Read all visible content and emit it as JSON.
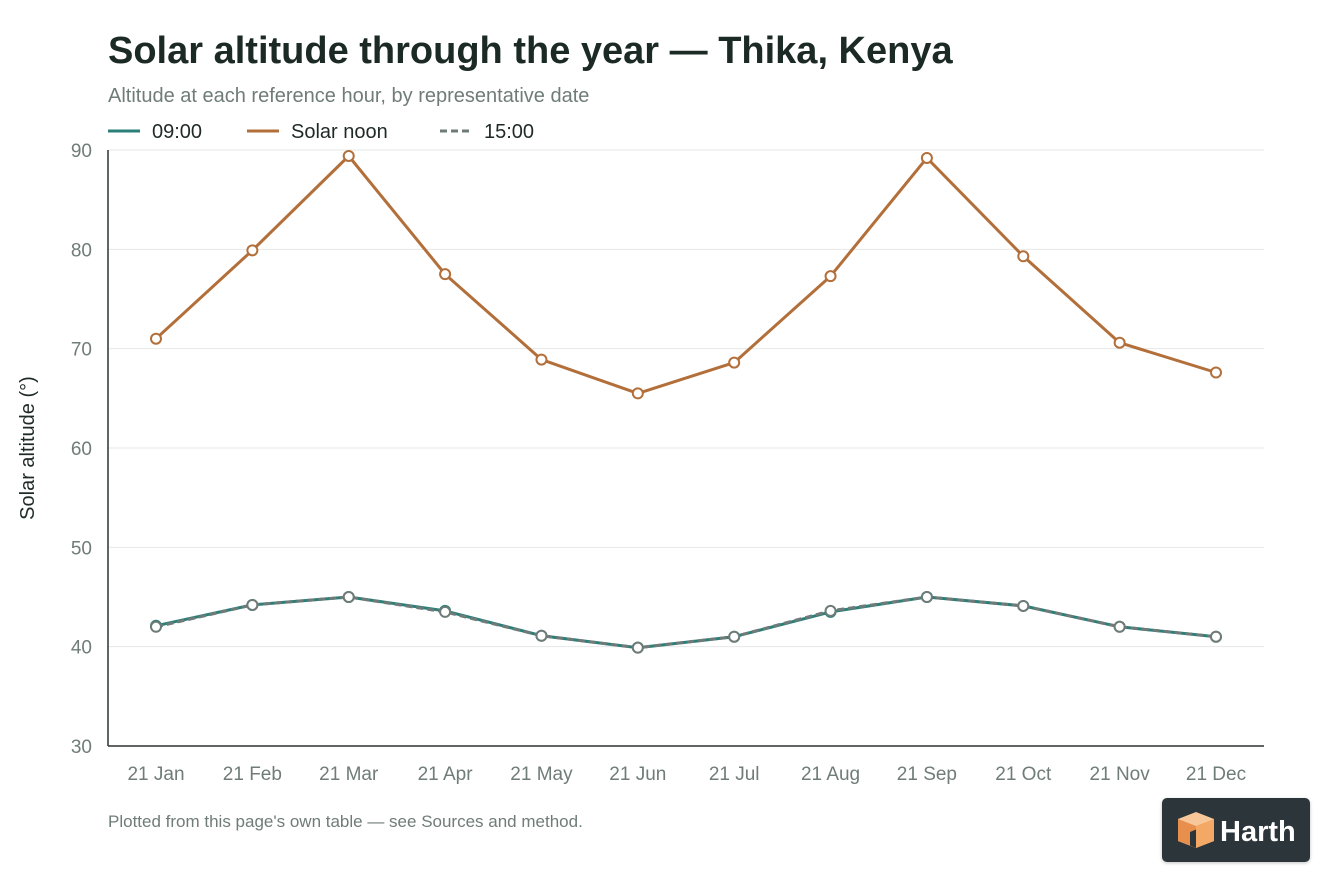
{
  "chart_data": {
    "type": "line",
    "title": "Solar altitude through the year — Thika, Kenya",
    "subtitle": "Altitude at each reference hour, by representative date",
    "ylabel": "Solar altitude (°)",
    "xlabel": "",
    "ylim": [
      30,
      90
    ],
    "yticks": [
      30,
      40,
      50,
      60,
      70,
      80,
      90
    ],
    "grid": true,
    "legend_position": "top-left",
    "categories": [
      "21 Jan",
      "21 Feb",
      "21 Mar",
      "21 Apr",
      "21 May",
      "21 Jun",
      "21 Jul",
      "21 Aug",
      "21 Sep",
      "21 Oct",
      "21 Nov",
      "21 Dec"
    ],
    "series": [
      {
        "name": "09:00",
        "color": "#2a7f78",
        "dash": "solid",
        "values": [
          42.1,
          44.2,
          45.0,
          43.6,
          41.1,
          39.9,
          41.0,
          43.5,
          45.0,
          44.1,
          42.0,
          41.0
        ]
      },
      {
        "name": "Solar noon",
        "color": "#b36f3a",
        "dash": "solid",
        "values": [
          71.0,
          79.9,
          89.4,
          77.5,
          68.9,
          65.5,
          68.6,
          77.3,
          89.2,
          79.3,
          70.6,
          67.6
        ]
      },
      {
        "name": "15:00",
        "color": "#6e7b78",
        "dash": "dashed",
        "values": [
          42.0,
          44.2,
          45.0,
          43.5,
          41.1,
          39.9,
          41.0,
          43.6,
          45.0,
          44.1,
          42.0,
          41.0
        ]
      }
    ]
  },
  "footnote": "Plotted from this page's own table — see Sources and method.",
  "logo": {
    "text": "Harth",
    "accent_color": "#f0a868",
    "background": "#2c3539"
  }
}
